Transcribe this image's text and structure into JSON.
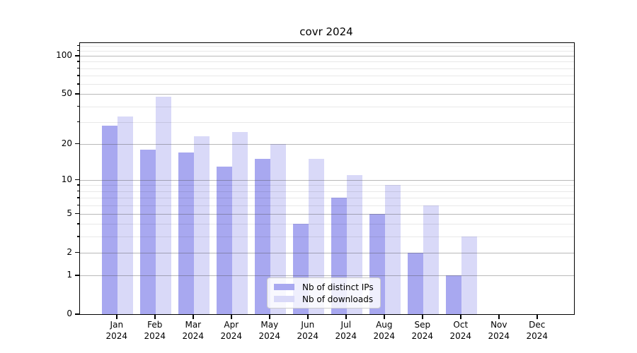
{
  "title": "covr 2024",
  "colors": {
    "ips_bar": "#a8a8f0",
    "downloads_bar": "#d9d9f8",
    "grid_major": "#b0b0b0",
    "grid_minor": "#e8e8e8",
    "axis": "#000000",
    "legend_border": "#cccccc",
    "text": "#000000"
  },
  "chart_data": {
    "type": "bar",
    "title": "covr 2024",
    "categories": [
      "Jan 2024",
      "Feb 2024",
      "Mar 2024",
      "Apr 2024",
      "May 2024",
      "Jun 2024",
      "Jul 2024",
      "Aug 2024",
      "Sep 2024",
      "Oct 2024",
      "Nov 2024",
      "Dec 2024"
    ],
    "months": [
      "Jan",
      "Feb",
      "Mar",
      "Apr",
      "May",
      "Jun",
      "Jul",
      "Aug",
      "Sep",
      "Oct",
      "Nov",
      "Dec"
    ],
    "year": "2024",
    "series": [
      {
        "name": "Nb of distinct IPs",
        "color": "#a8a8f0",
        "values": [
          28,
          18,
          17,
          13,
          15,
          4,
          7,
          5,
          2,
          1,
          0,
          0
        ]
      },
      {
        "name": "Nb of downloads",
        "color": "#d9d9f8",
        "values": [
          33,
          48,
          23,
          25,
          20,
          15,
          11,
          9,
          6,
          3,
          0,
          0
        ]
      }
    ],
    "xlabel": "",
    "ylabel": "",
    "yscale": "log1p",
    "ylim": [
      0,
      126
    ],
    "y_major_ticks": [
      0,
      1,
      2,
      5,
      10,
      20,
      50,
      100
    ],
    "y_minor_ticks": [
      3,
      4,
      6,
      7,
      8,
      9,
      30,
      40,
      60,
      70,
      80,
      90,
      110,
      120
    ],
    "grid": true,
    "grid_above_bars": true,
    "legend_position": "lower center"
  }
}
